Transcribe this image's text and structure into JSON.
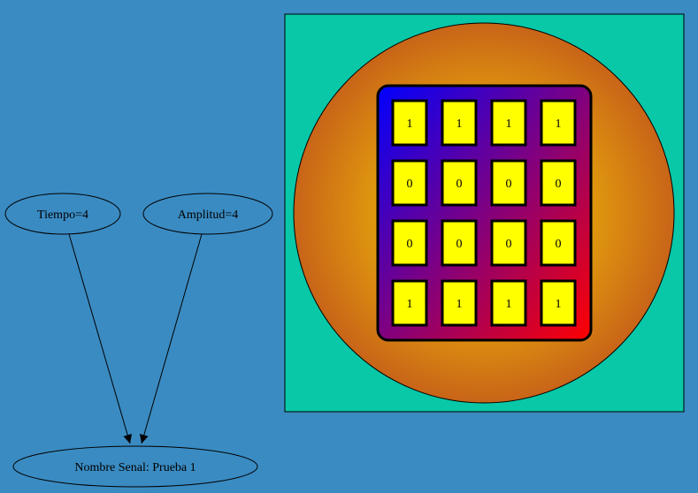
{
  "diagram": {
    "nodes": {
      "tiempo": {
        "label": "Tiempo=4"
      },
      "amplitud": {
        "label": "Amplitud=4"
      },
      "nombre": {
        "label": "Nombre Senal: Prueba 1"
      }
    },
    "edges": [
      {
        "from": "tiempo",
        "to": "nombre"
      },
      {
        "from": "amplitud",
        "to": "nombre"
      }
    ]
  },
  "matrix": {
    "rows": [
      [
        "1",
        "1",
        "1",
        "1"
      ],
      [
        "0",
        "0",
        "0",
        "0"
      ],
      [
        "0",
        "0",
        "0",
        "0"
      ],
      [
        "1",
        "1",
        "1",
        "1"
      ]
    ]
  },
  "colors": {
    "background": "#3a8bc2",
    "panel": "#08c8a8",
    "circle_inner": "#ffdd00",
    "circle_outer": "#c86418",
    "grid_start": "#0000ff",
    "grid_end": "#ff0000",
    "cell": "#ffff00"
  }
}
